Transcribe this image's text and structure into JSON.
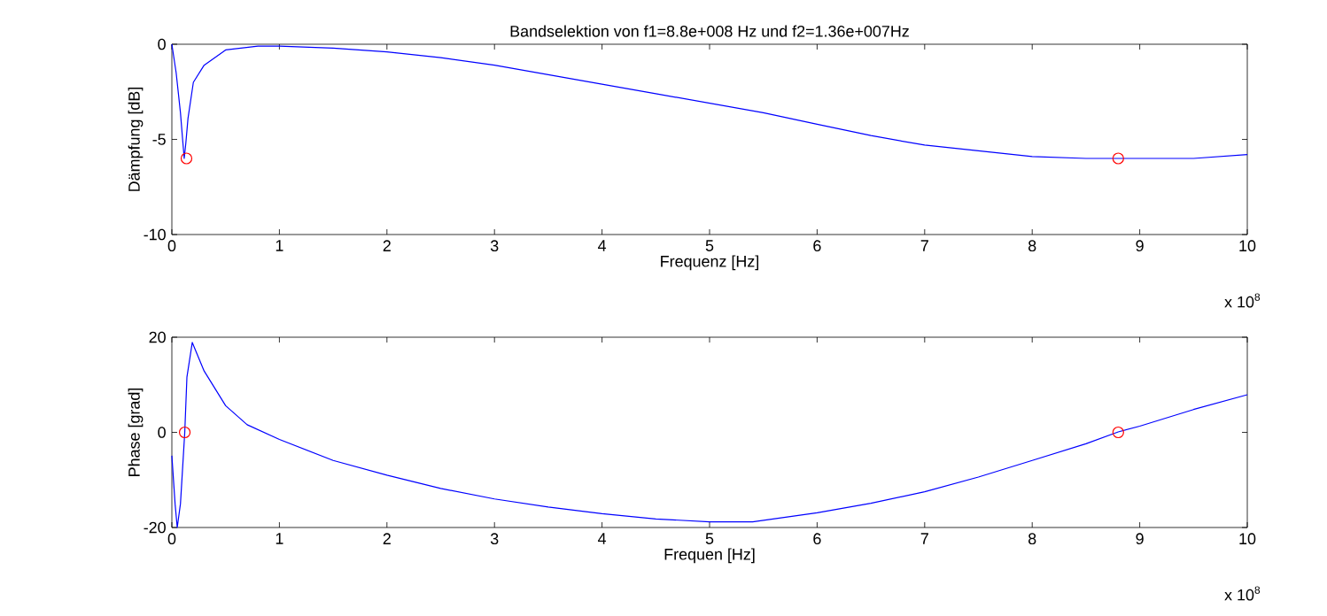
{
  "chart_data": [
    {
      "type": "line",
      "title": "Bandselektion von f1=8.8e+008 Hz und f2=1.36e+007Hz",
      "xlabel": "Frequenz [Hz]",
      "ylabel": "Dämpfung [dB]",
      "annotations": [
        "x 10$^{8}$"
      ],
      "xlim": [
        0,
        10
      ],
      "ylim": [
        -10,
        0
      ],
      "xticks": [
        0,
        1,
        2,
        3,
        4,
        5,
        6,
        7,
        8,
        9,
        10
      ],
      "yticks": [
        -10,
        -5,
        0
      ],
      "series": [
        {
          "color": "#0000ff",
          "line_style": "solid",
          "x": [
            0,
            0.04,
            0.08,
            0.1,
            0.115,
            0.13,
            0.15,
            0.2,
            0.3,
            0.5,
            0.8,
            1,
            1.5,
            2,
            2.5,
            3,
            3.5,
            4,
            4.5,
            5,
            5.5,
            6,
            6.5,
            7,
            7.5,
            8,
            8.5,
            9,
            9.5,
            10
          ],
          "values": [
            0,
            -1.5,
            -3.6,
            -5.0,
            -6.0,
            -5.2,
            -3.9,
            -2.0,
            -1.1,
            -0.3,
            -0.1,
            -0.1,
            -0.2,
            -0.4,
            -0.7,
            -1.1,
            -1.6,
            -2.1,
            -2.6,
            -3.1,
            -3.6,
            -4.2,
            -4.8,
            -5.3,
            -5.6,
            -5.9,
            -6.0,
            -6.0,
            -6.0,
            -5.8
          ]
        },
        {
          "type": "scatter",
          "color": "#ff0000",
          "marker": "circle",
          "x": [
            0.136,
            8.8
          ],
          "values": [
            -6.0,
            -6.0
          ]
        }
      ]
    },
    {
      "type": "line",
      "xlabel": "Frequen [Hz]",
      "ylabel": "Phase [grad]",
      "annotations": [
        "x 10$^{8}$"
      ],
      "xlim": [
        0,
        10
      ],
      "ylim": [
        -20,
        20
      ],
      "xticks": [
        0,
        1,
        2,
        3,
        4,
        5,
        6,
        7,
        8,
        9,
        10
      ],
      "yticks": [
        -20,
        0,
        20
      ],
      "series": [
        {
          "color": "#0000ff",
          "line_style": "solid",
          "x": [
            0,
            0.03,
            0.05,
            0.08,
            0.12,
            0.14,
            0.19,
            0.3,
            0.5,
            0.7,
            1,
            1.5,
            2,
            2.5,
            3,
            3.5,
            4,
            4.5,
            5,
            5.4,
            6,
            6.5,
            7,
            7.5,
            8,
            8.5,
            8.8,
            9,
            9.5,
            10
          ],
          "values": [
            -4.9,
            -15,
            -20,
            -15,
            0,
            11.6,
            18.9,
            12.9,
            5.6,
            1.6,
            -1.5,
            -5.9,
            -9,
            -11.8,
            -14,
            -15.7,
            -17.1,
            -18.2,
            -18.8,
            -18.8,
            -16.9,
            -14.9,
            -12.5,
            -9.4,
            -5.9,
            -2.4,
            0.1,
            1.3,
            4.8,
            7.9
          ]
        },
        {
          "type": "scatter",
          "color": "#ff0000",
          "marker": "circle",
          "x": [
            0.12,
            8.8
          ],
          "values": [
            0,
            0
          ]
        }
      ]
    }
  ]
}
